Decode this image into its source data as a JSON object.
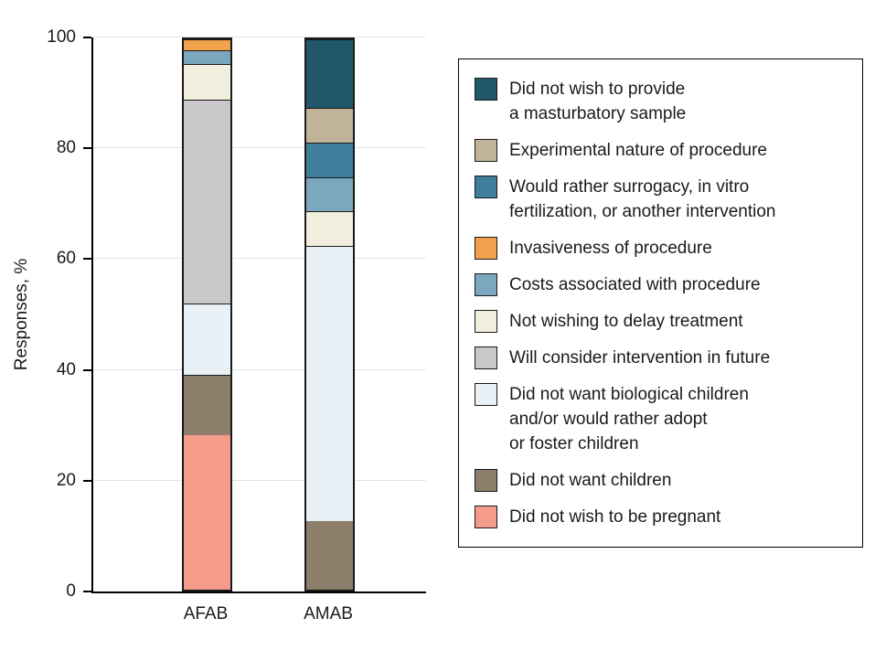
{
  "chart_data": {
    "type": "bar",
    "stacked": true,
    "title": "",
    "xlabel": "",
    "ylabel": "Responses, %",
    "ylim": [
      0,
      100
    ],
    "yticks": [
      0,
      20,
      40,
      60,
      80,
      100
    ],
    "grid": "horizontal",
    "legend_position": "right",
    "categories": [
      "AFAB",
      "AMAB"
    ],
    "stack_order": "bottom-to-top",
    "series": [
      {
        "name": "Did not wish to be pregnant",
        "color": "#f49b8c",
        "values": [
          28,
          0
        ]
      },
      {
        "name": "Did not want children",
        "color": "#8c7e6b",
        "values": [
          11,
          12.5
        ]
      },
      {
        "name": "Did not want biological children and/or would rather adopt or foster children",
        "color": "#e9f1f6",
        "values": [
          13,
          50
        ]
      },
      {
        "name": "Will consider intervention in future",
        "color": "#c8c8ca",
        "values": [
          37,
          0
        ]
      },
      {
        "name": "Not wishing to delay treatment",
        "color": "#f2eedd",
        "values": [
          6.5,
          6.25
        ]
      },
      {
        "name": "Costs associated with procedure",
        "color": "#7ba7bf",
        "values": [
          2.5,
          6.25
        ]
      },
      {
        "name": "Invasiveness of procedure",
        "color": "#f0a24c",
        "values": [
          2,
          0
        ]
      },
      {
        "name": "Would rather surrogacy, in vitro fertilization, or another intervention",
        "color": "#3f7e9d",
        "values": [
          0,
          6.25
        ]
      },
      {
        "name": "Experimental nature of procedure",
        "color": "#c2b498",
        "values": [
          0,
          6.25
        ]
      },
      {
        "name": "Did not wish to provide a masturbatory sample",
        "color": "#20576b",
        "values": [
          0,
          12.5
        ]
      }
    ]
  },
  "legend": {
    "items": [
      {
        "label": "Did not wish to provide\na masturbatory sample",
        "color": "#20576b"
      },
      {
        "label": "Experimental nature of procedure",
        "color": "#c2b498"
      },
      {
        "label": "Would rather surrogacy, in vitro\nfertilization, or another intervention",
        "color": "#3f7e9d"
      },
      {
        "label": "Invasiveness of procedure",
        "color": "#f0a24c"
      },
      {
        "label": "Costs associated with procedure",
        "color": "#7ba7bf"
      },
      {
        "label": "Not wishing to delay treatment",
        "color": "#f2eedd"
      },
      {
        "label": "Will consider intervention in future",
        "color": "#c8c8ca"
      },
      {
        "label": "Did not want biological children\nand/or would rather adopt\nor foster children",
        "color": "#e9f1f6"
      },
      {
        "label": "Did not want children",
        "color": "#8c7e6b"
      },
      {
        "label": "Did not wish to be pregnant",
        "color": "#f49b8c"
      }
    ]
  }
}
